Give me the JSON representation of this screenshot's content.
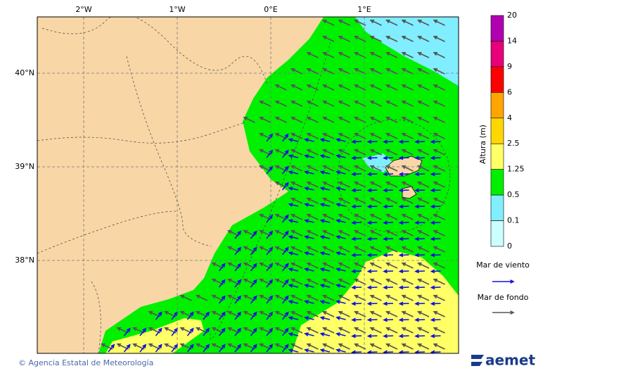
{
  "map": {
    "lon_labels": [
      "2°W",
      "1°W",
      "0°E",
      "1°E"
    ],
    "lat_labels": [
      "40°N",
      "39°N",
      "38°N"
    ],
    "land_color": "#f8d6a6",
    "colorbar": {
      "title": "Altura (m)",
      "levels": [
        {
          "label": "20",
          "color": "#b000b0"
        },
        {
          "label": "14",
          "color": "#e8007a"
        },
        {
          "label": "9",
          "color": "#ff0000"
        },
        {
          "label": "6",
          "color": "#ffa500"
        },
        {
          "label": "4",
          "color": "#ffd700"
        },
        {
          "label": "2.5",
          "color": "#ffff66"
        },
        {
          "label": "1.25",
          "color": "#00f000"
        },
        {
          "label": "0.5",
          "color": "#80eeff"
        },
        {
          "label": "0.1",
          "color": "#ccffff"
        },
        {
          "label": "0",
          "color": null
        }
      ]
    },
    "legend": [
      {
        "label": "Mar de viento",
        "color": "#1010e0"
      },
      {
        "label": "Mar de fondo",
        "color": "#555555"
      }
    ]
  },
  "footer": {
    "credit": "© Agencia Estatal de Meteorología",
    "logo": "aemet"
  }
}
